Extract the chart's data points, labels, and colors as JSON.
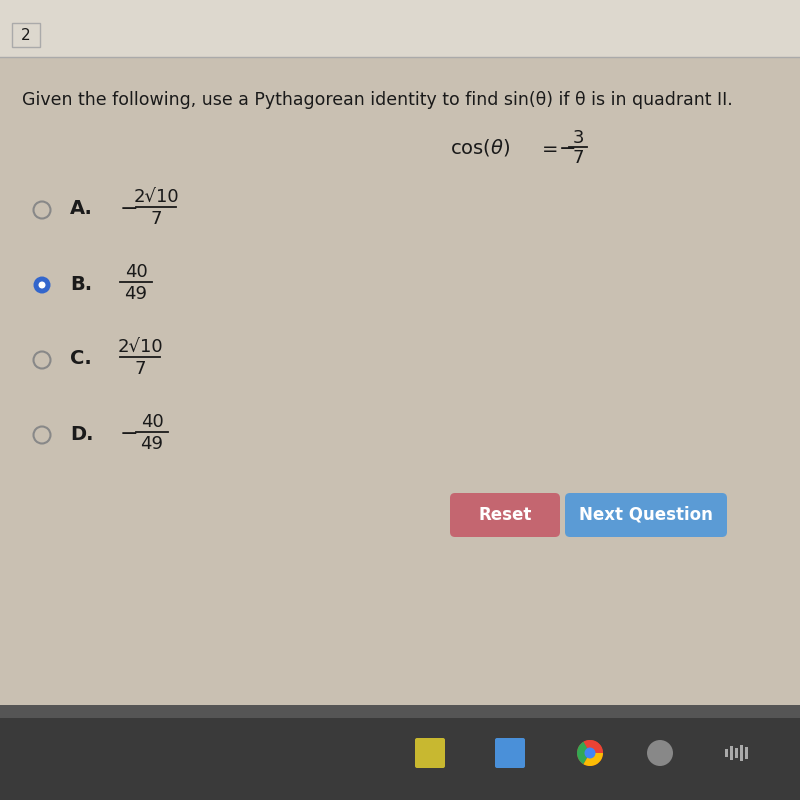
{
  "page_num": "2",
  "question_text": "Given the following, use a Pythagorean identity to find sin(θ) if θ is in quadrant II.",
  "options": [
    {
      "label": "A.",
      "sign": "−",
      "num": "2√10",
      "den": "7",
      "selected": false
    },
    {
      "label": "B.",
      "sign": "",
      "num": "40",
      "den": "49",
      "selected": true
    },
    {
      "label": "C.",
      "sign": "",
      "num": "2√10",
      "den": "7",
      "selected": false
    },
    {
      "label": "D.",
      "sign": "−",
      "num": "40",
      "den": "49",
      "selected": false
    }
  ],
  "bg_color": "#c9c0b2",
  "header_bg": "#ddd8ce",
  "text_color": "#1a1a1a",
  "selected_fill": "#3366cc",
  "selected_inner": "#ffffff",
  "unselected_edge": "#888888",
  "reset_btn_color": "#c46670",
  "next_btn_color": "#5b9bd5",
  "btn_text_color": "#ffffff",
  "taskbar_color": "#3a3a3a",
  "taskbar_top_color": "#555555",
  "header_line_color": "#aaaaaa",
  "page_box_color": "#aaaaaa"
}
